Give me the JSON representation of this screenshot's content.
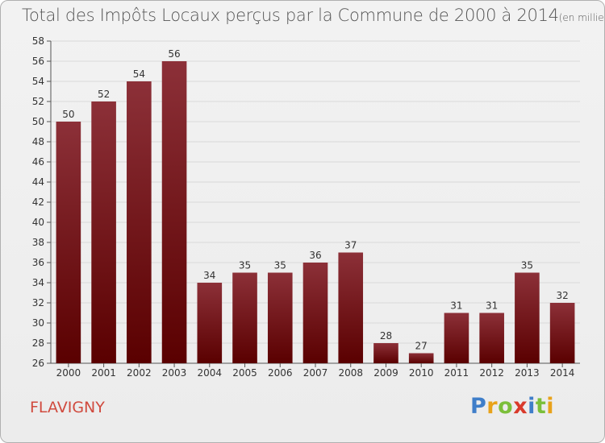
{
  "header": {
    "title": "Total des Impôts Locaux perçus par la Commune de 2000 à 2014",
    "unit": "(en milliers d'€)"
  },
  "commune": "FLAVIGNY",
  "logo": {
    "text": "Proxiti",
    "letters": [
      "P",
      "r",
      "o",
      "x",
      "i",
      "t",
      "i"
    ]
  },
  "colors": {
    "bar_top": "#8c3038",
    "bar_bottom": "#5a0000",
    "commune": "#d04a3e",
    "grid": "#d9d9d9"
  },
  "chart_data": {
    "type": "bar",
    "title": "Total des Impôts Locaux perçus par la Commune de 2000 à 2014",
    "unit": "(en milliers d'€)",
    "xlabel": "",
    "ylabel": "",
    "categories": [
      "2000",
      "2001",
      "2002",
      "2003",
      "2004",
      "2005",
      "2006",
      "2007",
      "2008",
      "2009",
      "2010",
      "2011",
      "2012",
      "2013",
      "2014"
    ],
    "values": [
      50,
      52,
      54,
      56,
      34,
      35,
      35,
      36,
      37,
      28,
      27,
      31,
      31,
      35,
      32
    ],
    "ylim": [
      26,
      58
    ],
    "yticks": [
      26,
      28,
      30,
      32,
      34,
      36,
      38,
      40,
      42,
      44,
      46,
      48,
      50,
      52,
      54,
      56,
      58
    ],
    "grid": true
  }
}
